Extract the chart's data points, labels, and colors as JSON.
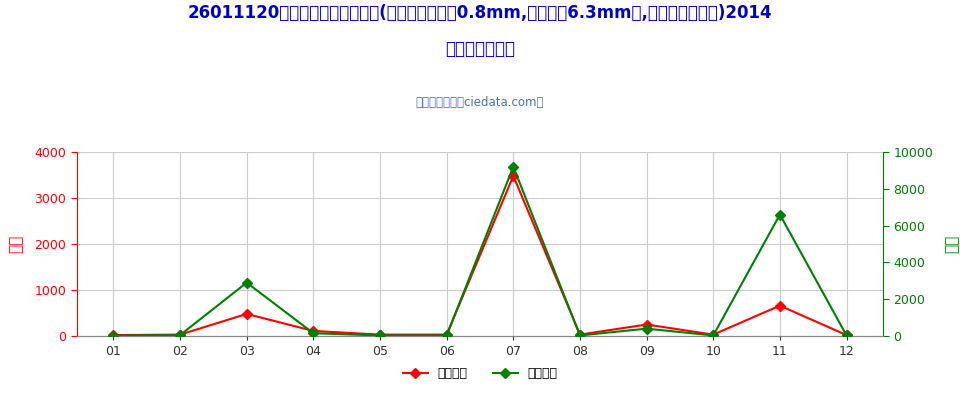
{
  "title_line1": "26011120未烧结铁矿砂及其精矿(平均粒度不小于0.8mm,但不大于6.3mm的,焙烧黄铁矿除外)2014",
  "title_line2": "年出口月度走势",
  "subtitle": "进出口服务网（ciedata.com）",
  "months": [
    "01",
    "02",
    "03",
    "04",
    "05",
    "06",
    "07",
    "08",
    "09",
    "10",
    "11",
    "12"
  ],
  "export_usd": [
    20,
    30,
    480,
    110,
    30,
    30,
    3480,
    30,
    250,
    30,
    660,
    20
  ],
  "export_qty": [
    20,
    50,
    2900,
    150,
    30,
    30,
    9200,
    30,
    400,
    30,
    6600,
    30
  ],
  "left_ylim": [
    0,
    4000
  ],
  "right_ylim": [
    0,
    10000
  ],
  "left_yticks": [
    0,
    1000,
    2000,
    3000,
    4000
  ],
  "right_yticks": [
    0,
    2000,
    4000,
    6000,
    8000,
    10000
  ],
  "left_ylabel": "金额",
  "right_ylabel": "数量",
  "usd_color": "#FF0000",
  "qty_color": "#008000",
  "usd_label": "出口美元",
  "qty_label": "出口数量",
  "bg_color": "#FFFFFF",
  "grid_color": "#CCCCCC",
  "title_color": "#0000CD",
  "subtitle_color": "#4472C4",
  "left_ylabel_color": "#FF0000",
  "right_ylabel_color": "#008000"
}
